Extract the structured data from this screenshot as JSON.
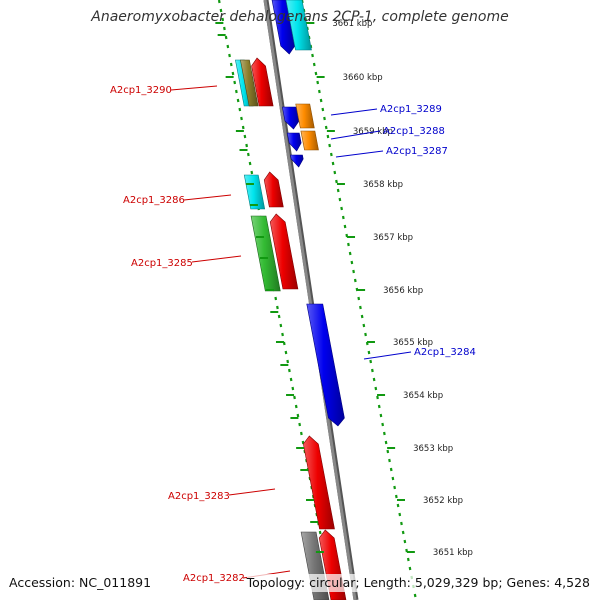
{
  "title": "Anaeromyxobacter dehalogenans 2CP-1, complete genome",
  "footer": {
    "accession": "Accession: NC_011891",
    "stats": "Topology: circular; Length: 5,029,329 bp; Genes: 4,528"
  },
  "colors": {
    "forward_label": "#cc0000",
    "reverse_label": "#0000cc",
    "ruler": "#119911",
    "backbone": "#888888",
    "red": "#ee0000",
    "blue": "#0000ee",
    "cyan": "#00e5ee",
    "green": "#33bb33",
    "orange": "#ff8c00",
    "gray": "#777777",
    "olive": "#8b7d2b"
  },
  "ruler_ticks": [
    {
      "label": "3651 kbp"
    },
    {
      "label": "3652 kbp"
    },
    {
      "label": "3653 kbp"
    },
    {
      "label": "3654 kbp"
    },
    {
      "label": "3655 kbp"
    },
    {
      "label": "3656 kbp"
    },
    {
      "label": "3657 kbp"
    },
    {
      "label": "3658 kbp"
    },
    {
      "label": "3659 kbp"
    },
    {
      "label": "3660 kbp"
    },
    {
      "label": "3661 kbp"
    }
  ],
  "gene_labels": [
    {
      "text": "A2cp1_3290",
      "strand": "forward"
    },
    {
      "text": "A2cp1_3289",
      "strand": "reverse"
    },
    {
      "text": "A2cp1_3288",
      "strand": "reverse"
    },
    {
      "text": "A2cp1_3287",
      "strand": "reverse"
    },
    {
      "text": "A2cp1_3286",
      "strand": "forward"
    },
    {
      "text": "A2cp1_3285",
      "strand": "forward"
    },
    {
      "text": "A2cp1_3284",
      "strand": "reverse"
    },
    {
      "text": "A2cp1_3283",
      "strand": "forward"
    },
    {
      "text": "A2cp1_3282",
      "strand": "forward"
    }
  ]
}
